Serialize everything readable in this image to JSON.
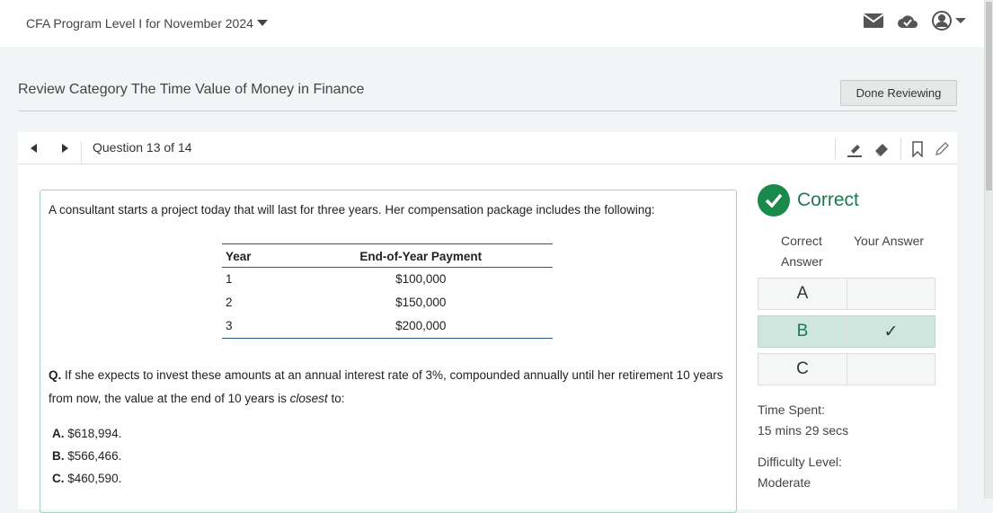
{
  "header": {
    "program": "CFA Program Level I for November 2024"
  },
  "page": {
    "title": "Review Category The Time Value of Money in Finance",
    "done_label": "Done Reviewing"
  },
  "question_bar": {
    "counter": "Question 13 of 14"
  },
  "question": {
    "intro": "A consultant starts a project today that will last for three years. Her compensation package includes the following:",
    "table": {
      "headers": [
        "Year",
        "End-of-Year Payment"
      ],
      "rows": [
        [
          "1",
          "$100,000"
        ],
        [
          "2",
          "$150,000"
        ],
        [
          "3",
          "$200,000"
        ]
      ]
    },
    "q_label": "Q.",
    "q_text_1": "If she expects to invest these amounts at an annual interest rate of 3%, compounded annually until her retirement 10 years from now, the value at the end of 10 years is ",
    "q_emph": "closest",
    "q_text_2": " to:",
    "options": [
      {
        "letter": "A.",
        "text": "$618,994."
      },
      {
        "letter": "B.",
        "text": "$566,466."
      },
      {
        "letter": "C.",
        "text": "$460,590."
      }
    ]
  },
  "result": {
    "status": "Correct",
    "status_color": "#1a8a4c",
    "col_correct": "Correct Answer",
    "col_yours": "Your Answer",
    "rows": [
      {
        "letter": "A",
        "mark": ""
      },
      {
        "letter": "B",
        "mark": "✓"
      },
      {
        "letter": "C",
        "mark": ""
      }
    ],
    "correct_answer": "B",
    "your_answer": "B",
    "time_label": "Time Spent:",
    "time_value": "15 mins 29 secs",
    "difficulty_label": "Difficulty Level:",
    "difficulty_value": "Moderate"
  }
}
